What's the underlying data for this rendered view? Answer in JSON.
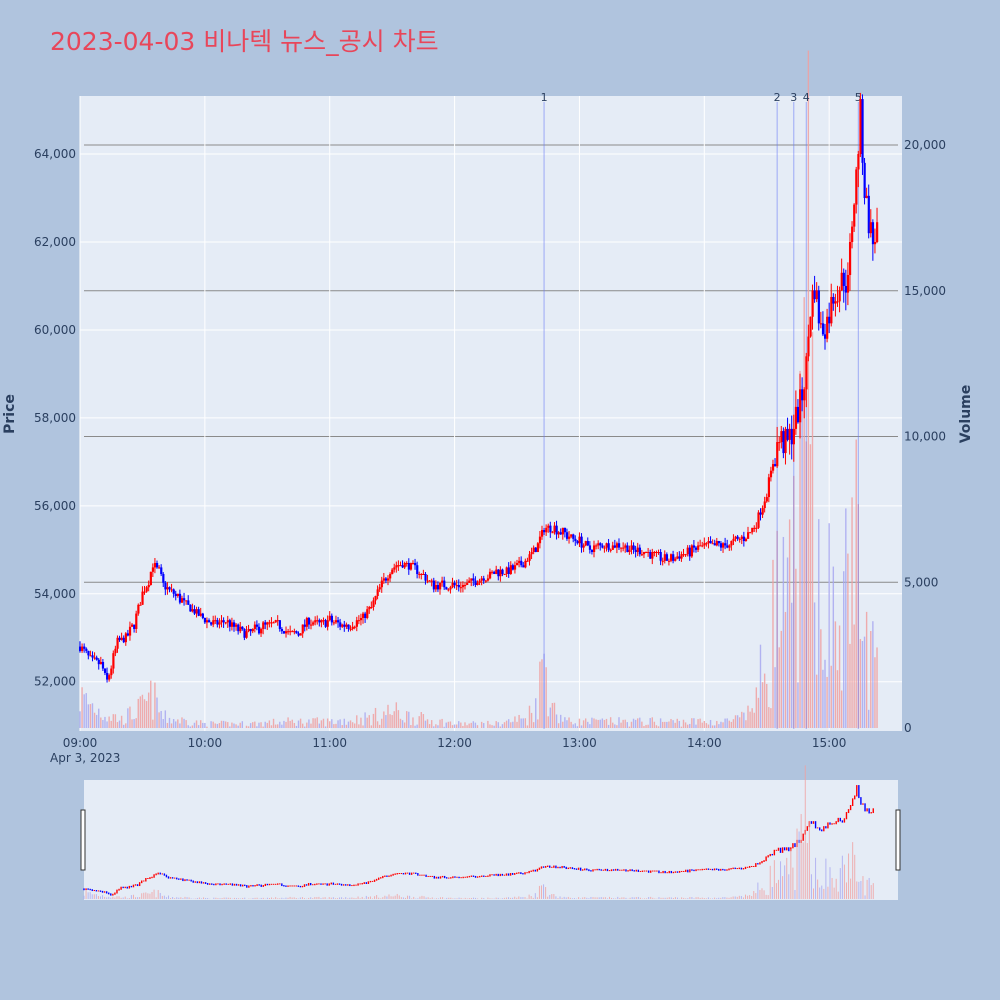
{
  "chart_data": {
    "type": "candlestick",
    "title": "2023-04-03 비나텍 뉴스_공시 차트",
    "date_label": "Apr 3, 2023",
    "y_axis_label": "Price",
    "y2_axis_label": "Volume",
    "x_ticks": [
      "09:00",
      "10:00",
      "11:00",
      "12:00",
      "13:00",
      "14:00",
      "15:00"
    ],
    "x_range_minutes": [
      540,
      935
    ],
    "price_range": [
      50880,
      65320
    ],
    "price_ticks": [
      52000,
      54000,
      56000,
      58000,
      60000,
      62000,
      64000
    ],
    "price_tick_labels": [
      "52,000",
      "54,000",
      "56,000",
      "58,000",
      "60,000",
      "62,000",
      "64,000"
    ],
    "volume_range": [
      0,
      20000
    ],
    "volume_ticks": [
      0,
      5000,
      10000,
      15000,
      20000
    ],
    "volume_tick_labels": [
      "0",
      "5,000",
      "10,000",
      "15,000",
      "20,000"
    ],
    "up_color": "#ff0000",
    "down_color": "#0000ff",
    "news_markers": [
      {
        "label": "1",
        "time_min": 763
      },
      {
        "label": "2",
        "time_min": 875
      },
      {
        "label": "3",
        "time_min": 883
      },
      {
        "label": "4",
        "time_min": 889
      },
      {
        "label": "5",
        "time_min": 914
      }
    ],
    "price_keypoints": [
      [
        540,
        52800
      ],
      [
        545,
        52500
      ],
      [
        550,
        52400
      ],
      [
        553,
        52000
      ],
      [
        558,
        52900
      ],
      [
        562,
        53000
      ],
      [
        566,
        53300
      ],
      [
        570,
        54000
      ],
      [
        573,
        54300
      ],
      [
        575,
        54700
      ],
      [
        578,
        54500
      ],
      [
        580,
        54200
      ],
      [
        585,
        54000
      ],
      [
        590,
        53800
      ],
      [
        595,
        53600
      ],
      [
        600,
        53400
      ],
      [
        605,
        53300
      ],
      [
        610,
        53400
      ],
      [
        615,
        53200
      ],
      [
        620,
        53100
      ],
      [
        625,
        53200
      ],
      [
        630,
        53300
      ],
      [
        635,
        53300
      ],
      [
        640,
        53100
      ],
      [
        645,
        53100
      ],
      [
        650,
        53400
      ],
      [
        655,
        53300
      ],
      [
        660,
        53400
      ],
      [
        665,
        53300
      ],
      [
        670,
        53300
      ],
      [
        675,
        53400
      ],
      [
        680,
        53700
      ],
      [
        685,
        54200
      ],
      [
        690,
        54600
      ],
      [
        695,
        54700
      ],
      [
        700,
        54600
      ],
      [
        705,
        54400
      ],
      [
        710,
        54200
      ],
      [
        715,
        54200
      ],
      [
        720,
        54200
      ],
      [
        725,
        54200
      ],
      [
        730,
        54300
      ],
      [
        735,
        54400
      ],
      [
        740,
        54500
      ],
      [
        745,
        54500
      ],
      [
        750,
        54600
      ],
      [
        755,
        54800
      ],
      [
        760,
        55100
      ],
      [
        763,
        55500
      ],
      [
        768,
        55500
      ],
      [
        775,
        55300
      ],
      [
        780,
        55200
      ],
      [
        785,
        55000
      ],
      [
        790,
        55100
      ],
      [
        795,
        55100
      ],
      [
        800,
        55100
      ],
      [
        805,
        55000
      ],
      [
        810,
        55000
      ],
      [
        815,
        54900
      ],
      [
        820,
        54800
      ],
      [
        825,
        54800
      ],
      [
        830,
        54900
      ],
      [
        835,
        55000
      ],
      [
        840,
        55100
      ],
      [
        845,
        55100
      ],
      [
        850,
        55100
      ],
      [
        855,
        55200
      ],
      [
        860,
        55300
      ],
      [
        865,
        55600
      ],
      [
        870,
        56300
      ],
      [
        873,
        57000
      ],
      [
        876,
        57500
      ],
      [
        880,
        57400
      ],
      [
        884,
        58000
      ],
      [
        887,
        58500
      ],
      [
        889,
        59200
      ],
      [
        891,
        60500
      ],
      [
        893,
        61000
      ],
      [
        896,
        60000
      ],
      [
        899,
        60200
      ],
      [
        902,
        60800
      ],
      [
        905,
        61000
      ],
      [
        907,
        61200
      ],
      [
        909,
        61000
      ],
      [
        911,
        62500
      ],
      [
        913,
        63500
      ],
      [
        915,
        64900
      ],
      [
        917,
        63200
      ],
      [
        919,
        62500
      ],
      [
        921,
        62000
      ],
      [
        923,
        62300
      ]
    ],
    "volume_keypoints": [
      [
        540,
        1500
      ],
      [
        550,
        800
      ],
      [
        560,
        400
      ],
      [
        570,
        1000
      ],
      [
        575,
        1500
      ],
      [
        580,
        500
      ],
      [
        600,
        200
      ],
      [
        620,
        200
      ],
      [
        640,
        300
      ],
      [
        660,
        300
      ],
      [
        680,
        500
      ],
      [
        690,
        800
      ],
      [
        700,
        500
      ],
      [
        720,
        200
      ],
      [
        740,
        200
      ],
      [
        755,
        500
      ],
      [
        760,
        1500
      ],
      [
        763,
        3500
      ],
      [
        768,
        800
      ],
      [
        775,
        300
      ],
      [
        800,
        300
      ],
      [
        820,
        300
      ],
      [
        840,
        300
      ],
      [
        850,
        300
      ],
      [
        860,
        500
      ],
      [
        865,
        1500
      ],
      [
        870,
        3500
      ],
      [
        875,
        6000
      ],
      [
        880,
        5000
      ],
      [
        884,
        9000
      ],
      [
        888,
        12000
      ],
      [
        890,
        19000
      ],
      [
        895,
        8000
      ],
      [
        900,
        6000
      ],
      [
        905,
        4000
      ],
      [
        909,
        7000
      ],
      [
        911,
        11000
      ],
      [
        913,
        9000
      ],
      [
        915,
        4500
      ],
      [
        918,
        4000
      ],
      [
        921,
        3500
      ],
      [
        923,
        3000
      ]
    ]
  }
}
